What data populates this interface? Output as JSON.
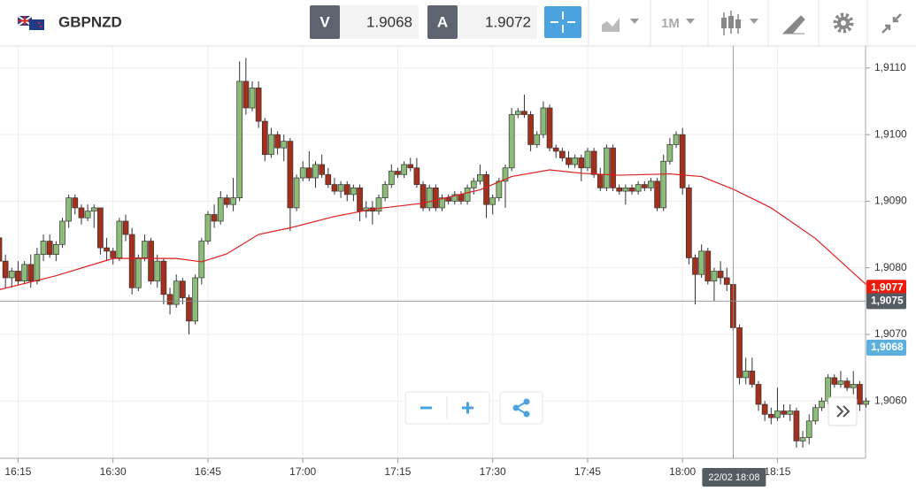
{
  "toolbar": {
    "symbol": "GBPNZD",
    "bid_label": "V",
    "bid": "1.9068",
    "ask_label": "A",
    "ask": "1.9072",
    "timeframe": "1M"
  },
  "chart_data": {
    "type": "candlestick",
    "x": [
      "16:12",
      "16:13",
      "16:14",
      "16:15",
      "16:16",
      "16:17",
      "16:18",
      "16:19",
      "16:20",
      "16:21",
      "16:22",
      "16:23",
      "16:24",
      "16:25",
      "16:26",
      "16:27",
      "16:28",
      "16:29",
      "16:30",
      "16:31",
      "16:32",
      "16:33",
      "16:34",
      "16:35",
      "16:36",
      "16:37",
      "16:38",
      "16:39",
      "16:40",
      "16:41",
      "16:42",
      "16:43",
      "16:44",
      "16:45",
      "16:46",
      "16:47",
      "16:48",
      "16:49",
      "16:50",
      "16:51",
      "16:52",
      "16:53",
      "16:54",
      "16:55",
      "16:56",
      "16:57",
      "16:58",
      "16:59",
      "17:00",
      "17:01",
      "17:02",
      "17:03",
      "17:04",
      "17:05",
      "17:06",
      "17:07",
      "17:08",
      "17:09",
      "17:10",
      "17:11",
      "17:12",
      "17:13",
      "17:14",
      "17:15",
      "17:16",
      "17:17",
      "17:18",
      "17:19",
      "17:20",
      "17:21",
      "17:22",
      "17:23",
      "17:24",
      "17:25",
      "17:26",
      "17:27",
      "17:28",
      "17:29",
      "17:30",
      "17:31",
      "17:32",
      "17:33",
      "17:34",
      "17:35",
      "17:36",
      "17:37",
      "17:38",
      "17:39",
      "17:40",
      "17:41",
      "17:42",
      "17:43",
      "17:44",
      "17:45",
      "17:46",
      "17:47",
      "17:48",
      "17:49",
      "17:50",
      "17:51",
      "17:52",
      "17:53",
      "17:54",
      "17:55",
      "17:56",
      "17:57",
      "17:58",
      "17:59",
      "18:00",
      "18:01",
      "18:02",
      "18:03",
      "18:04",
      "18:05",
      "18:06",
      "18:07",
      "18:08",
      "18:09",
      "18:10",
      "18:11",
      "18:12",
      "18:13",
      "18:14",
      "18:15",
      "18:16",
      "18:17",
      "18:18",
      "18:19",
      "18:20",
      "18:21",
      "18:22",
      "18:23",
      "18:24",
      "18:25",
      "18:26",
      "18:27",
      "18:28",
      "18:29"
    ],
    "ohlc": [
      [
        1.90845,
        1.90855,
        1.9075,
        1.9081
      ],
      [
        1.9081,
        1.9082,
        1.9077,
        1.90785
      ],
      [
        1.90785,
        1.908,
        1.9077,
        1.90795
      ],
      [
        1.90795,
        1.9081,
        1.90775,
        1.9078
      ],
      [
        1.9078,
        1.9081,
        1.90775,
        1.90805
      ],
      [
        1.90805,
        1.9082,
        1.9077,
        1.9078
      ],
      [
        1.9078,
        1.9083,
        1.90775,
        1.9082
      ],
      [
        1.9082,
        1.9085,
        1.9081,
        1.9084
      ],
      [
        1.9084,
        1.9085,
        1.90815,
        1.9082
      ],
      [
        1.9082,
        1.9084,
        1.9081,
        1.90835
      ],
      [
        1.90835,
        1.90875,
        1.9083,
        1.9087
      ],
      [
        1.9087,
        1.9091,
        1.9086,
        1.90905
      ],
      [
        1.90905,
        1.9091,
        1.9088,
        1.9089
      ],
      [
        1.9089,
        1.90895,
        1.90865,
        1.90875
      ],
      [
        1.90875,
        1.90895,
        1.9087,
        1.90885
      ],
      [
        1.90885,
        1.90895,
        1.9086,
        1.9089
      ],
      [
        1.9089,
        1.9089,
        1.9082,
        1.9083
      ],
      [
        1.9083,
        1.90845,
        1.9081,
        1.90825
      ],
      [
        1.90825,
        1.9083,
        1.90805,
        1.90815
      ],
      [
        1.90815,
        1.90875,
        1.9081,
        1.9087
      ],
      [
        1.9087,
        1.9088,
        1.9084,
        1.9085
      ],
      [
        1.9085,
        1.9086,
        1.9076,
        1.9077
      ],
      [
        1.9077,
        1.9082,
        1.90765,
        1.90815
      ],
      [
        1.90815,
        1.9085,
        1.9081,
        1.9084
      ],
      [
        1.9084,
        1.90845,
        1.90775,
        1.9078
      ],
      [
        1.9078,
        1.9082,
        1.9077,
        1.9081
      ],
      [
        1.9081,
        1.90815,
        1.90745,
        1.9076
      ],
      [
        1.9076,
        1.9077,
        1.9073,
        1.90745
      ],
      [
        1.90745,
        1.9079,
        1.9074,
        1.9078
      ],
      [
        1.9078,
        1.90785,
        1.90745,
        1.90755
      ],
      [
        1.90755,
        1.9076,
        1.907,
        1.9072
      ],
      [
        1.9072,
        1.9079,
        1.90715,
        1.90785
      ],
      [
        1.90785,
        1.90845,
        1.90775,
        1.9084
      ],
      [
        1.9084,
        1.90885,
        1.90835,
        1.9088
      ],
      [
        1.9088,
        1.90895,
        1.9086,
        1.9087
      ],
      [
        1.9087,
        1.90915,
        1.90865,
        1.90905
      ],
      [
        1.90905,
        1.9091,
        1.9089,
        1.90895
      ],
      [
        1.90895,
        1.90935,
        1.90885,
        1.90905
      ],
      [
        1.90905,
        1.9111,
        1.909,
        1.9108
      ],
      [
        1.9108,
        1.91115,
        1.9103,
        1.9104
      ],
      [
        1.9104,
        1.9108,
        1.91035,
        1.9107
      ],
      [
        1.9107,
        1.9108,
        1.9101,
        1.9102
      ],
      [
        1.9102,
        1.91025,
        1.9096,
        1.9097
      ],
      [
        1.9097,
        1.9101,
        1.90965,
        1.91
      ],
      [
        1.91,
        1.91005,
        1.9097,
        1.9098
      ],
      [
        1.9098,
        1.91,
        1.9096,
        1.9099
      ],
      [
        1.9099,
        1.90995,
        1.90855,
        1.9089
      ],
      [
        1.9089,
        1.9094,
        1.90885,
        1.90935
      ],
      [
        1.90935,
        1.9096,
        1.9093,
        1.9095
      ],
      [
        1.9095,
        1.90975,
        1.9093,
        1.90935
      ],
      [
        1.90935,
        1.9096,
        1.9092,
        1.90955
      ],
      [
        1.90955,
        1.9097,
        1.90935,
        1.9094
      ],
      [
        1.9094,
        1.9095,
        1.9092,
        1.90925
      ],
      [
        1.90925,
        1.90935,
        1.9091,
        1.90915
      ],
      [
        1.90915,
        1.9093,
        1.90905,
        1.90925
      ],
      [
        1.90925,
        1.9093,
        1.909,
        1.9091
      ],
      [
        1.9091,
        1.90925,
        1.909,
        1.9092
      ],
      [
        1.9092,
        1.90925,
        1.9087,
        1.90885
      ],
      [
        1.90885,
        1.909,
        1.90875,
        1.9089
      ],
      [
        1.9089,
        1.909,
        1.90865,
        1.90885
      ],
      [
        1.90885,
        1.9091,
        1.9088,
        1.90905
      ],
      [
        1.90905,
        1.9093,
        1.909,
        1.90925
      ],
      [
        1.90925,
        1.90955,
        1.9092,
        1.90945
      ],
      [
        1.90945,
        1.9095,
        1.90935,
        1.9094
      ],
      [
        1.9094,
        1.9096,
        1.90935,
        1.90955
      ],
      [
        1.90955,
        1.90965,
        1.90945,
        1.9095
      ],
      [
        1.9095,
        1.90965,
        1.9092,
        1.90925
      ],
      [
        1.90925,
        1.9093,
        1.90885,
        1.9089
      ],
      [
        1.9089,
        1.90925,
        1.90885,
        1.9092
      ],
      [
        1.9092,
        1.90925,
        1.90885,
        1.9089
      ],
      [
        1.9089,
        1.9091,
        1.90885,
        1.90905
      ],
      [
        1.90905,
        1.9091,
        1.90895,
        1.909
      ],
      [
        1.909,
        1.90915,
        1.90895,
        1.9091
      ],
      [
        1.9091,
        1.90915,
        1.90895,
        1.909
      ],
      [
        1.909,
        1.90925,
        1.90895,
        1.9092
      ],
      [
        1.9092,
        1.90935,
        1.9091,
        1.9093
      ],
      [
        1.9093,
        1.90955,
        1.90925,
        1.9094
      ],
      [
        1.9094,
        1.90945,
        1.90875,
        1.90895
      ],
      [
        1.90895,
        1.9091,
        1.9088,
        1.90905
      ],
      [
        1.90905,
        1.90935,
        1.909,
        1.9093
      ],
      [
        1.9093,
        1.90955,
        1.9089,
        1.9095
      ],
      [
        1.9095,
        1.9104,
        1.90945,
        1.9103
      ],
      [
        1.9103,
        1.9104,
        1.91025,
        1.91035
      ],
      [
        1.91035,
        1.9106,
        1.91025,
        1.9103
      ],
      [
        1.9103,
        1.91035,
        1.90975,
        1.90985
      ],
      [
        1.90985,
        1.91005,
        1.9098,
        1.91
      ],
      [
        1.91,
        1.9105,
        1.90995,
        1.9104
      ],
      [
        1.9104,
        1.91045,
        1.90975,
        1.9098
      ],
      [
        1.9098,
        1.90985,
        1.90965,
        1.90975
      ],
      [
        1.90975,
        1.9098,
        1.9096,
        1.90965
      ],
      [
        1.90965,
        1.90975,
        1.9095,
        1.90955
      ],
      [
        1.90955,
        1.9097,
        1.9095,
        1.90965
      ],
      [
        1.90965,
        1.9097,
        1.9093,
        1.9095
      ],
      [
        1.9095,
        1.9098,
        1.90945,
        1.90975
      ],
      [
        1.90975,
        1.9098,
        1.90935,
        1.9094
      ],
      [
        1.9094,
        1.9095,
        1.90915,
        1.9092
      ],
      [
        1.9092,
        1.90985,
        1.90915,
        1.9098
      ],
      [
        1.9098,
        1.90985,
        1.90915,
        1.9092
      ],
      [
        1.9092,
        1.90925,
        1.9091,
        1.90915
      ],
      [
        1.90915,
        1.90925,
        1.90895,
        1.9092
      ],
      [
        1.9092,
        1.90925,
        1.9091,
        1.90915
      ],
      [
        1.90915,
        1.9093,
        1.9091,
        1.90925
      ],
      [
        1.90925,
        1.9093,
        1.90915,
        1.9092
      ],
      [
        1.9092,
        1.90935,
        1.90915,
        1.9093
      ],
      [
        1.9093,
        1.90935,
        1.90885,
        1.9089
      ],
      [
        1.9089,
        1.9097,
        1.90885,
        1.9096
      ],
      [
        1.9096,
        1.90995,
        1.90955,
        1.90985
      ],
      [
        1.90985,
        1.91005,
        1.9098,
        1.91
      ],
      [
        1.91,
        1.9101,
        1.9091,
        1.9092
      ],
      [
        1.9092,
        1.90925,
        1.90805,
        1.90815
      ],
      [
        1.90815,
        1.9082,
        1.90745,
        1.9079
      ],
      [
        1.9079,
        1.90835,
        1.90785,
        1.90825
      ],
      [
        1.90825,
        1.9083,
        1.90775,
        1.9078
      ],
      [
        1.9078,
        1.908,
        1.9075,
        1.90795
      ],
      [
        1.90795,
        1.9081,
        1.90775,
        1.90785
      ],
      [
        1.90785,
        1.908,
        1.90765,
        1.90775
      ],
      [
        1.90775,
        1.90775,
        1.90705,
        1.9071
      ],
      [
        1.9071,
        1.90715,
        1.90625,
        1.90635
      ],
      [
        1.90635,
        1.90665,
        1.90625,
        1.90645
      ],
      [
        1.90645,
        1.90665,
        1.9062,
        1.90625
      ],
      [
        1.90625,
        1.9063,
        1.90585,
        1.90595
      ],
      [
        1.90595,
        1.906,
        1.9057,
        1.9058
      ],
      [
        1.9058,
        1.9059,
        1.90565,
        1.90575
      ],
      [
        1.90575,
        1.9062,
        1.9057,
        1.90585
      ],
      [
        1.90585,
        1.90595,
        1.90575,
        1.9058
      ],
      [
        1.9058,
        1.90595,
        1.9057,
        1.90585
      ],
      [
        1.90585,
        1.9059,
        1.9053,
        1.9054
      ],
      [
        1.9054,
        1.90555,
        1.9053,
        1.90545
      ],
      [
        1.90545,
        1.9058,
        1.90535,
        1.9057
      ],
      [
        1.9057,
        1.90595,
        1.90565,
        1.9059
      ],
      [
        1.9059,
        1.90605,
        1.90585,
        1.906
      ],
      [
        1.906,
        1.9064,
        1.90595,
        1.90635
      ],
      [
        1.90635,
        1.9064,
        1.9062,
        1.90625
      ],
      [
        1.90625,
        1.90645,
        1.9062,
        1.9063
      ],
      [
        1.9063,
        1.90635,
        1.90615,
        1.9062
      ],
      [
        1.9062,
        1.90645,
        1.9061,
        1.90625
      ],
      [
        1.90625,
        1.9063,
        1.90585,
        1.90595
      ],
      [
        1.90595,
        1.90605,
        1.9059,
        1.906
      ]
    ],
    "up_color": "#8dbb78",
    "down_color": "#a3301c",
    "moving_average": {
      "color": "#e01e1e",
      "x": [
        "16:12",
        "16:21",
        "16:30",
        "16:40",
        "16:44",
        "16:48",
        "16:53",
        "16:58",
        "17:05",
        "17:11",
        "17:19",
        "17:28",
        "17:33",
        "17:39",
        "17:44",
        "17:50",
        "17:58",
        "18:03",
        "18:08",
        "18:14",
        "18:21",
        "18:29"
      ],
      "values": [
        1.90767,
        1.90788,
        1.90814,
        1.90814,
        1.90809,
        1.90821,
        1.9085,
        1.9086,
        1.90877,
        1.90888,
        1.90897,
        1.90917,
        1.90937,
        1.90947,
        1.90942,
        1.90939,
        1.90941,
        1.90937,
        1.90918,
        1.9089,
        1.90844,
        1.90775
      ]
    },
    "ylim": [
      1.90514,
      1.91133
    ],
    "yticks": [
      {
        "value": 1.911,
        "label": "1,9110"
      },
      {
        "value": 1.91,
        "label": "1,9100"
      },
      {
        "value": 1.909,
        "label": "1,9090"
      },
      {
        "value": 1.908,
        "label": "1,9080"
      },
      {
        "value": 1.907,
        "label": "1,9070"
      },
      {
        "value": 1.906,
        "label": "1,9060"
      }
    ],
    "xticks": [
      "16:15",
      "16:30",
      "16:45",
      "17:00",
      "17:15",
      "17:30",
      "17:45",
      "18:00",
      "18:15"
    ],
    "grid": true,
    "price_labels": [
      {
        "value": 1.9077,
        "label": "1,9077",
        "color": "#ee1a0c"
      },
      {
        "value": 1.9075,
        "label": "1,9075",
        "color": "#555b63"
      },
      {
        "value": 1.9068,
        "label": "1,9068",
        "color": "#5bb0de"
      }
    ],
    "crosshair": {
      "x": "18:08",
      "label": "22/02 18:08"
    }
  }
}
